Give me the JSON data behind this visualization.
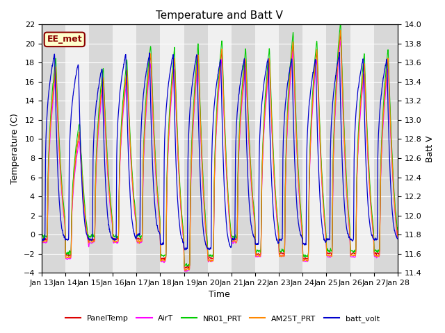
{
  "title": "Temperature and Batt V",
  "xlabel": "Time",
  "ylabel_left": "Temperature (C)",
  "ylabel_right": "Batt V",
  "annotation_text": "EE_met",
  "annotation_bg": "#ffffcc",
  "annotation_border": "#8B0000",
  "annotation_text_color": "#8B0000",
  "ylim_left": [
    -4,
    22
  ],
  "ylim_right": [
    11.4,
    14.0
  ],
  "yticks_left": [
    -4,
    -2,
    0,
    2,
    4,
    6,
    8,
    10,
    12,
    14,
    16,
    18,
    20,
    22
  ],
  "yticks_right": [
    11.4,
    11.6,
    11.8,
    12.0,
    12.2,
    12.4,
    12.6,
    12.8,
    13.0,
    13.2,
    13.4,
    13.6,
    13.8,
    14.0
  ],
  "xtick_labels": [
    "Jan 13",
    "Jan 14",
    "Jan 15",
    "Jan 16",
    "Jan 17",
    "Jan 18",
    "Jan 19",
    "Jan 20",
    "Jan 21",
    "Jan 22",
    "Jan 23",
    "Jan 24",
    "Jan 25",
    "Jan 26",
    "Jan 27",
    "Jan 28"
  ],
  "legend_entries": [
    "PanelTemp",
    "AirT",
    "NR01_PRT",
    "AM25T_PRT",
    "batt_volt"
  ],
  "legend_colors": [
    "#dd0000",
    "#ff00ff",
    "#00cc00",
    "#ff8800",
    "#0000cc"
  ],
  "bg_color": "#ffffff",
  "plot_bg_light": "#f0f0f0",
  "plot_bg_dark": "#d8d8d8",
  "grid_color": "#ffffff",
  "n_days": 15,
  "pts_per_day": 288,
  "day_maxs": [
    17.5,
    10.8,
    16.5,
    17.3,
    19.0,
    18.5,
    19.0,
    19.5,
    18.5,
    18.5,
    20.3,
    19.5,
    21.5,
    18.0,
    18.5
  ],
  "day_mins": [
    -0.5,
    -2.2,
    -0.5,
    -0.5,
    -0.5,
    -2.5,
    -3.5,
    -2.5,
    -0.5,
    -2.0,
    -2.0,
    -2.5,
    -2.0,
    -2.0,
    -2.0
  ],
  "batt_highs": [
    13.7,
    13.6,
    13.55,
    13.7,
    13.7,
    13.7,
    13.7,
    13.65,
    13.65,
    13.65,
    13.65,
    13.65,
    13.7,
    13.65,
    13.65
  ],
  "batt_lows": [
    11.75,
    11.75,
    11.75,
    11.75,
    11.8,
    11.7,
    11.65,
    11.65,
    11.75,
    11.7,
    11.75,
    11.7,
    11.75,
    11.75,
    11.75
  ]
}
